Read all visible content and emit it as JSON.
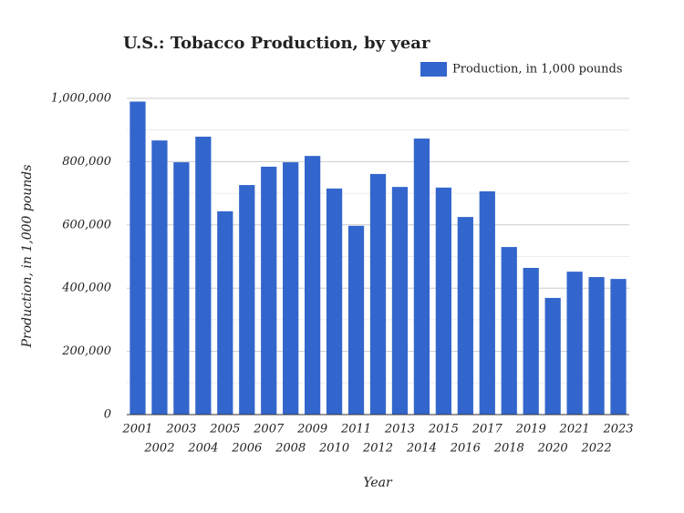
{
  "chart_data": {
    "type": "bar",
    "title": "U.S.: Tobacco Production, by year",
    "x_label": "Year",
    "y_label": "Production, in 1,000 pounds",
    "categories": [
      "2001",
      "2002",
      "2003",
      "2004",
      "2005",
      "2006",
      "2007",
      "2008",
      "2009",
      "2010",
      "2011",
      "2012",
      "2013",
      "2014",
      "2015",
      "2016",
      "2017",
      "2018",
      "2019",
      "2020",
      "2021",
      "2022",
      "2023"
    ],
    "series": [
      {
        "name": "Production, in 1,000 pounds",
        "color": "#3366cc",
        "values": [
          990000,
          867000,
          798000,
          879000,
          643000,
          726000,
          784000,
          798000,
          818000,
          715000,
          597000,
          761000,
          720000,
          873000,
          718000,
          625000,
          706000,
          530000,
          464000,
          369000,
          452000,
          435000,
          429000
        ]
      }
    ],
    "ylim": [
      0,
      1000000
    ],
    "yticks": [
      0,
      {
        "value": 200000,
        "label": "200,000"
      },
      {
        "value": 400000,
        "label": "400,000"
      },
      {
        "value": 600000,
        "label": "600,000"
      },
      {
        "value": 800000,
        "label": "800,000"
      },
      {
        "value": 1000000,
        "label": "1,000,000"
      }
    ],
    "minor_yticks": [
      100000,
      300000,
      500000,
      700000,
      900000
    ],
    "grid": true,
    "legend": "top-right"
  }
}
